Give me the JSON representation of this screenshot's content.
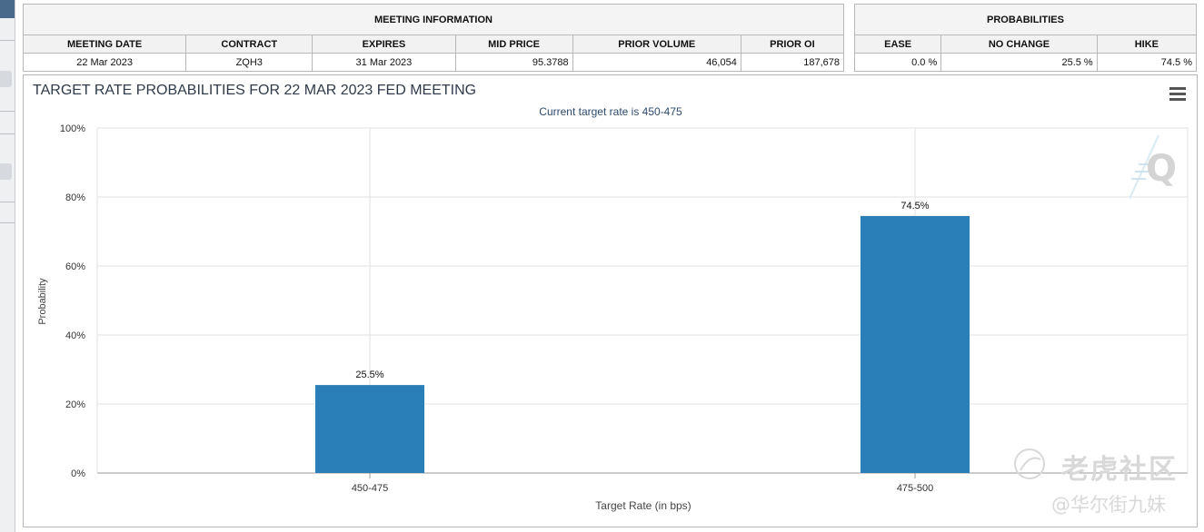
{
  "meeting_info": {
    "group_title": "MEETING INFORMATION",
    "headers": [
      "MEETING DATE",
      "CONTRACT",
      "EXPIRES",
      "MID PRICE",
      "PRIOR VOLUME",
      "PRIOR OI"
    ],
    "row": [
      "22 Mar 2023",
      "ZQH3",
      "31 Mar 2023",
      "95.3788",
      "46,054",
      "187,678"
    ]
  },
  "probabilities": {
    "group_title": "PROBABILITIES",
    "headers": [
      "EASE",
      "NO CHANGE",
      "HIKE"
    ],
    "row": [
      "0.0 %",
      "25.5 %",
      "74.5 %"
    ]
  },
  "watermark": {
    "line1": "老虎社区",
    "line2": "@华尔街九妹"
  },
  "colors": {
    "bar": "#2b7fb8",
    "title": "#2f3a4a",
    "subtitle": "#2c4a6e",
    "grid": "#e2e2e2"
  },
  "chart_data": {
    "type": "bar",
    "title": "TARGET RATE PROBABILITIES FOR 22 MAR 2023 FED MEETING",
    "subtitle": "Current target rate is 450-475",
    "xlabel": "Target Rate (in bps)",
    "ylabel": "Probability",
    "categories": [
      "450-475",
      "475-500"
    ],
    "values": [
      25.5,
      74.5
    ],
    "data_labels": [
      "25.5%",
      "74.5%"
    ],
    "ylim": [
      0,
      100
    ],
    "yticks": [
      0,
      20,
      40,
      60,
      80,
      100
    ],
    "ytick_labels": [
      "0%",
      "20%",
      "40%",
      "60%",
      "80%",
      "100%"
    ],
    "grid": true,
    "legend": "none"
  }
}
